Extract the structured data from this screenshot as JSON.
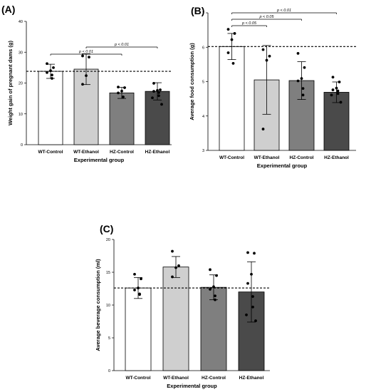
{
  "chart_data": [
    {
      "type": "bar",
      "panel_label": "(A)",
      "categories": [
        "WT-Control",
        "WT-Ethanol",
        "HZ-Control",
        "HZ-Ethanol"
      ],
      "values": [
        23.8,
        24.5,
        16.8,
        17.3
      ],
      "errors": [
        2.3,
        5.0,
        1.8,
        2.8
      ],
      "points": [
        [
          26.3,
          25.0,
          24.0,
          23.4,
          22.6,
          21.5
        ],
        [
          28.8,
          28.4,
          22.4,
          19.6
        ],
        [
          18.7,
          18.5,
          17.4,
          16.8,
          15.5
        ],
        [
          19.9,
          17.8,
          17.6,
          17.3,
          16.9,
          15.9,
          15.2,
          13.1
        ]
      ],
      "bar_colors": [
        "#ffffff",
        "#cfcfcf",
        "#7f7f7f",
        "#4a4a4a"
      ],
      "reference_line": 23.8,
      "ylim": [
        0,
        40
      ],
      "yticks": [
        0,
        10,
        20,
        30,
        40
      ],
      "xlabel": "Experimental group",
      "ylabel": "Weight gain of pregnant dams (g)",
      "comparisons": [
        {
          "from": 0,
          "to": 2,
          "label": "p < 0.01"
        },
        {
          "from": 1,
          "to": 3,
          "label": "p < 0.01"
        }
      ]
    },
    {
      "type": "bar",
      "panel_label": "(B)",
      "categories": [
        "WT-Control",
        "WT-Ethanol",
        "HZ-Control",
        "HZ-Ethanol"
      ],
      "values": [
        6.02,
        5.05,
        5.03,
        4.69
      ],
      "errors": [
        0.38,
        1.0,
        0.55,
        0.3
      ],
      "points": [
        [
          6.52,
          6.4,
          6.22,
          5.84,
          5.53
        ],
        [
          5.93,
          5.74,
          5.62,
          3.62
        ],
        [
          5.82,
          5.41,
          5.09,
          5.02,
          4.8,
          4.61
        ],
        [
          5.13,
          4.99,
          4.81,
          4.76,
          4.73,
          4.65,
          4.61,
          4.4
        ]
      ],
      "bar_colors": [
        "#ffffff",
        "#cfcfcf",
        "#7f7f7f",
        "#4a4a4a"
      ],
      "reference_line": 6.02,
      "ylim": [
        3,
        7
      ],
      "yticks": [
        3,
        4,
        5,
        6,
        7
      ],
      "xlabel": "Experimental group",
      "ylabel": "Average food consumption (g)",
      "comparisons": [
        {
          "from": 0,
          "to": 1,
          "label": "p < 0.05"
        },
        {
          "from": 0,
          "to": 2,
          "label": "p < 0.05"
        },
        {
          "from": 0,
          "to": 3,
          "label": "p < 0.01"
        }
      ]
    },
    {
      "type": "bar",
      "panel_label": "(C)",
      "categories": [
        "WT-Control",
        "WT-Ethanol",
        "HZ-Control",
        "HZ-Ethanol"
      ],
      "values": [
        12.6,
        15.8,
        12.7,
        12.0
      ],
      "errors": [
        1.6,
        1.6,
        1.9,
        4.6
      ],
      "points": [
        [
          14.7,
          14.0,
          12.6,
          12.3,
          11.7,
          11.6
        ],
        [
          18.2,
          16.0,
          15.7,
          14.3
        ],
        [
          15.4,
          14.5,
          12.8,
          12.4,
          11.4,
          10.8
        ],
        [
          18.0,
          17.9,
          14.7,
          13.3,
          11.3,
          9.7,
          8.5,
          7.6
        ]
      ],
      "bar_colors": [
        "#ffffff",
        "#cfcfcf",
        "#7f7f7f",
        "#4a4a4a"
      ],
      "reference_line": 12.6,
      "ylim": [
        0,
        20
      ],
      "yticks": [
        0,
        5,
        10,
        15,
        20
      ],
      "xlabel": "Experimental group",
      "ylabel": "Average beverage consumption (ml)",
      "comparisons": []
    }
  ]
}
